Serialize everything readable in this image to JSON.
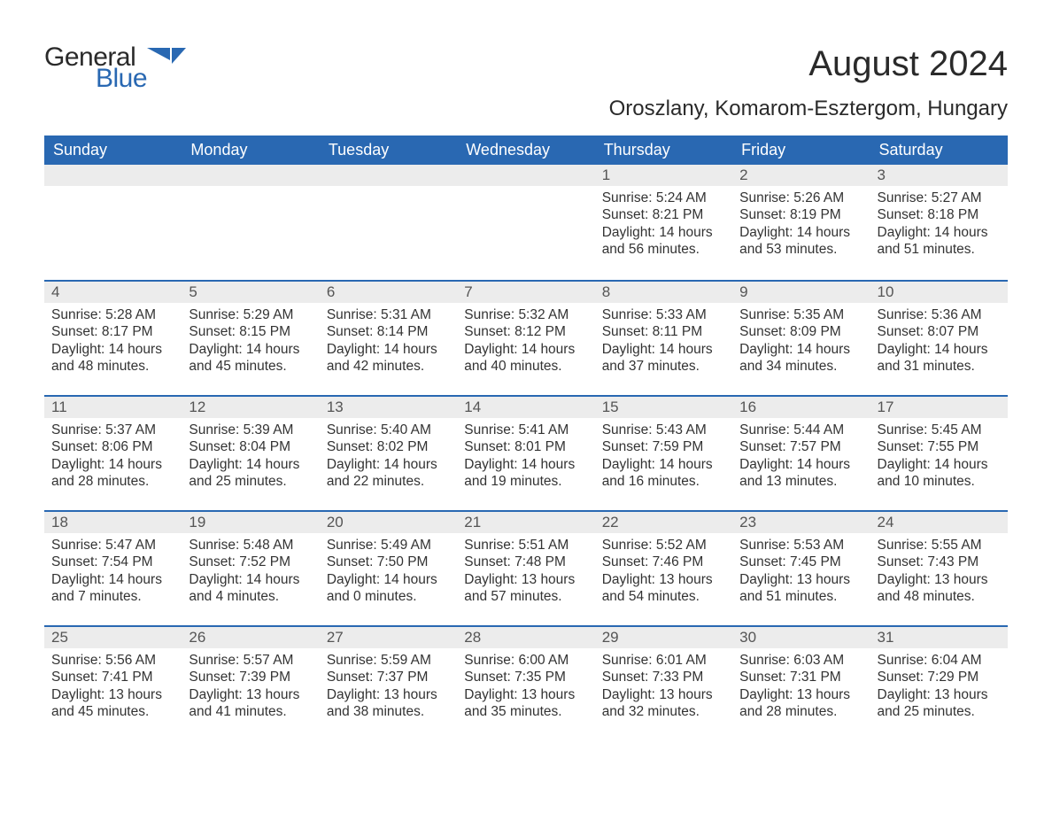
{
  "logo": {
    "general": "General",
    "blue": "Blue",
    "icon_color": "#2968b2"
  },
  "title": "August 2024",
  "location": "Oroszlany, Komarom-Esztergom, Hungary",
  "colors": {
    "header_bg": "#2968b2",
    "header_text": "#ffffff",
    "daynum_bg": "#ececec",
    "row_divider": "#2968b2",
    "body_text": "#333333",
    "page_bg": "#ffffff"
  },
  "fonts": {
    "title_size_pt": 30,
    "location_size_pt": 18,
    "header_size_pt": 14,
    "body_size_pt": 11.5,
    "family": "Arial"
  },
  "weekdays": [
    "Sunday",
    "Monday",
    "Tuesday",
    "Wednesday",
    "Thursday",
    "Friday",
    "Saturday"
  ],
  "weeks": [
    [
      null,
      null,
      null,
      null,
      {
        "d": "1",
        "sunrise": "5:24 AM",
        "sunset": "8:21 PM",
        "daylight": "14 hours and 56 minutes."
      },
      {
        "d": "2",
        "sunrise": "5:26 AM",
        "sunset": "8:19 PM",
        "daylight": "14 hours and 53 minutes."
      },
      {
        "d": "3",
        "sunrise": "5:27 AM",
        "sunset": "8:18 PM",
        "daylight": "14 hours and 51 minutes."
      }
    ],
    [
      {
        "d": "4",
        "sunrise": "5:28 AM",
        "sunset": "8:17 PM",
        "daylight": "14 hours and 48 minutes."
      },
      {
        "d": "5",
        "sunrise": "5:29 AM",
        "sunset": "8:15 PM",
        "daylight": "14 hours and 45 minutes."
      },
      {
        "d": "6",
        "sunrise": "5:31 AM",
        "sunset": "8:14 PM",
        "daylight": "14 hours and 42 minutes."
      },
      {
        "d": "7",
        "sunrise": "5:32 AM",
        "sunset": "8:12 PM",
        "daylight": "14 hours and 40 minutes."
      },
      {
        "d": "8",
        "sunrise": "5:33 AM",
        "sunset": "8:11 PM",
        "daylight": "14 hours and 37 minutes."
      },
      {
        "d": "9",
        "sunrise": "5:35 AM",
        "sunset": "8:09 PM",
        "daylight": "14 hours and 34 minutes."
      },
      {
        "d": "10",
        "sunrise": "5:36 AM",
        "sunset": "8:07 PM",
        "daylight": "14 hours and 31 minutes."
      }
    ],
    [
      {
        "d": "11",
        "sunrise": "5:37 AM",
        "sunset": "8:06 PM",
        "daylight": "14 hours and 28 minutes."
      },
      {
        "d": "12",
        "sunrise": "5:39 AM",
        "sunset": "8:04 PM",
        "daylight": "14 hours and 25 minutes."
      },
      {
        "d": "13",
        "sunrise": "5:40 AM",
        "sunset": "8:02 PM",
        "daylight": "14 hours and 22 minutes."
      },
      {
        "d": "14",
        "sunrise": "5:41 AM",
        "sunset": "8:01 PM",
        "daylight": "14 hours and 19 minutes."
      },
      {
        "d": "15",
        "sunrise": "5:43 AM",
        "sunset": "7:59 PM",
        "daylight": "14 hours and 16 minutes."
      },
      {
        "d": "16",
        "sunrise": "5:44 AM",
        "sunset": "7:57 PM",
        "daylight": "14 hours and 13 minutes."
      },
      {
        "d": "17",
        "sunrise": "5:45 AM",
        "sunset": "7:55 PM",
        "daylight": "14 hours and 10 minutes."
      }
    ],
    [
      {
        "d": "18",
        "sunrise": "5:47 AM",
        "sunset": "7:54 PM",
        "daylight": "14 hours and 7 minutes."
      },
      {
        "d": "19",
        "sunrise": "5:48 AM",
        "sunset": "7:52 PM",
        "daylight": "14 hours and 4 minutes."
      },
      {
        "d": "20",
        "sunrise": "5:49 AM",
        "sunset": "7:50 PM",
        "daylight": "14 hours and 0 minutes."
      },
      {
        "d": "21",
        "sunrise": "5:51 AM",
        "sunset": "7:48 PM",
        "daylight": "13 hours and 57 minutes."
      },
      {
        "d": "22",
        "sunrise": "5:52 AM",
        "sunset": "7:46 PM",
        "daylight": "13 hours and 54 minutes."
      },
      {
        "d": "23",
        "sunrise": "5:53 AM",
        "sunset": "7:45 PM",
        "daylight": "13 hours and 51 minutes."
      },
      {
        "d": "24",
        "sunrise": "5:55 AM",
        "sunset": "7:43 PM",
        "daylight": "13 hours and 48 minutes."
      }
    ],
    [
      {
        "d": "25",
        "sunrise": "5:56 AM",
        "sunset": "7:41 PM",
        "daylight": "13 hours and 45 minutes."
      },
      {
        "d": "26",
        "sunrise": "5:57 AM",
        "sunset": "7:39 PM",
        "daylight": "13 hours and 41 minutes."
      },
      {
        "d": "27",
        "sunrise": "5:59 AM",
        "sunset": "7:37 PM",
        "daylight": "13 hours and 38 minutes."
      },
      {
        "d": "28",
        "sunrise": "6:00 AM",
        "sunset": "7:35 PM",
        "daylight": "13 hours and 35 minutes."
      },
      {
        "d": "29",
        "sunrise": "6:01 AM",
        "sunset": "7:33 PM",
        "daylight": "13 hours and 32 minutes."
      },
      {
        "d": "30",
        "sunrise": "6:03 AM",
        "sunset": "7:31 PM",
        "daylight": "13 hours and 28 minutes."
      },
      {
        "d": "31",
        "sunrise": "6:04 AM",
        "sunset": "7:29 PM",
        "daylight": "13 hours and 25 minutes."
      }
    ]
  ],
  "labels": {
    "sunrise": "Sunrise: ",
    "sunset": "Sunset: ",
    "daylight": "Daylight: "
  }
}
